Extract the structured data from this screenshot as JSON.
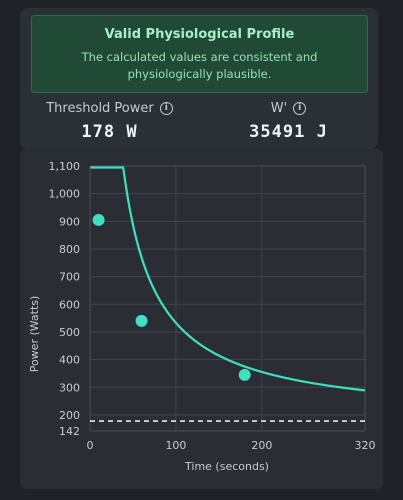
{
  "status": {
    "title": "Valid Physiological Profile",
    "message": "The calculated values are consistent and physiologically plausible."
  },
  "metrics": {
    "threshold_power": {
      "label": "Threshold Power",
      "value": "178 W",
      "icon": "info-icon"
    },
    "w_prime": {
      "label": "W'",
      "value": "35491 J",
      "icon": "info-icon"
    }
  },
  "colors": {
    "curve": "#3fe0c0",
    "threshold_line": "#e6e8ea",
    "banner_bg": "#214a36",
    "banner_text": "#93e1b5"
  },
  "chart_data": {
    "type": "line",
    "xlabel": "Time (seconds)",
    "ylabel": "Power (Watts)",
    "xlim": [
      0,
      320
    ],
    "ylim": [
      142,
      1100
    ],
    "x_ticks": [
      0,
      100,
      200,
      320
    ],
    "y_ticks": [
      142,
      200,
      300,
      400,
      500,
      600,
      700,
      800,
      900,
      1000,
      1100
    ],
    "y_tick_labels": [
      "142",
      "200",
      "300",
      "400",
      "500",
      "600",
      "700",
      "800",
      "900",
      "1,000",
      "1,100"
    ],
    "grid": true,
    "critical_power": 178,
    "w_prime": 35491,
    "curve_x_range": [
      0.5,
      320
    ],
    "points": [
      {
        "x": 10,
        "y": 905
      },
      {
        "x": 60,
        "y": 540
      },
      {
        "x": 180,
        "y": 345
      }
    ]
  }
}
